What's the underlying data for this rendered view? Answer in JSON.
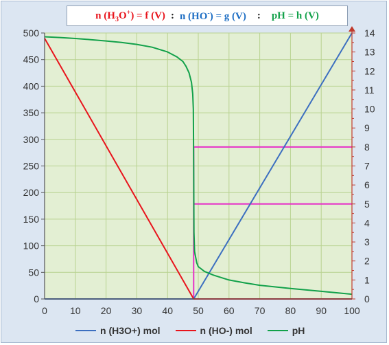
{
  "title": {
    "part1": "n (H",
    "part1_sub": "3",
    "part1_tail": "O",
    "part1_sup": "+",
    "part1_end": ") = f (V)",
    "sep1": ":",
    "part2": "n (HO",
    "part2_sup": "-",
    "part2_end": ") = g (V)",
    "sep2": ":",
    "part3": "pH = h (V)"
  },
  "colors": {
    "h3o": "#3c6fc0",
    "ho": "#e8141c",
    "ph": "#12a14a",
    "guide": "#e630c8",
    "plot_bg": "#e3efd3",
    "grid": "#b8d28f"
  },
  "chart_data": {
    "type": "line",
    "x": [
      0,
      10,
      20,
      30,
      40,
      48,
      49,
      50,
      60,
      70,
      80,
      90,
      100
    ],
    "xlim": [
      0,
      100
    ],
    "ylim_left": [
      0,
      500
    ],
    "ylim_right": [
      0,
      14
    ],
    "x_ticks": [
      "0",
      "10",
      "20",
      "30",
      "40",
      "50",
      "60",
      "70",
      "80",
      "90",
      "100"
    ],
    "y_left_ticks": [
      "0",
      "50",
      "100",
      "150",
      "200",
      "250",
      "300",
      "350",
      "400",
      "450",
      "500"
    ],
    "y_right_ticks": [
      "0",
      "1",
      "2",
      "3",
      "4",
      "5",
      "6",
      "7",
      "8",
      "9",
      "10",
      "11",
      "12",
      "13",
      "14"
    ],
    "grid": true,
    "legend_position": "bottom",
    "series": [
      {
        "name": "n (H3O+) mol",
        "axis": "left",
        "points": [
          [
            0,
            0
          ],
          [
            48.5,
            0
          ],
          [
            100,
            500
          ]
        ]
      },
      {
        "name": "n (HO-) mol",
        "axis": "left",
        "points": [
          [
            0,
            490
          ],
          [
            48.5,
            0
          ],
          [
            100,
            0
          ]
        ]
      },
      {
        "name": "pH",
        "axis": "right",
        "points": [
          [
            0,
            13.8
          ],
          [
            5,
            13.76
          ],
          [
            10,
            13.71
          ],
          [
            15,
            13.65
          ],
          [
            20,
            13.58
          ],
          [
            25,
            13.5
          ],
          [
            30,
            13.4
          ],
          [
            35,
            13.25
          ],
          [
            40,
            13.0
          ],
          [
            43,
            12.75
          ],
          [
            45,
            12.5
          ],
          [
            46,
            12.25
          ],
          [
            47,
            11.9
          ],
          [
            47.8,
            11.4
          ],
          [
            48.2,
            10.8
          ],
          [
            48.4,
            10.0
          ],
          [
            48.5,
            7.0
          ],
          [
            48.6,
            3.5
          ],
          [
            48.8,
            2.5
          ],
          [
            49.5,
            1.9
          ],
          [
            50,
            1.7
          ],
          [
            52,
            1.45
          ],
          [
            55,
            1.25
          ],
          [
            60,
            1.0
          ],
          [
            65,
            0.85
          ],
          [
            70,
            0.72
          ],
          [
            80,
            0.55
          ],
          [
            90,
            0.4
          ],
          [
            100,
            0.25
          ]
        ]
      }
    ],
    "guides": [
      {
        "x": 48.5,
        "from": 0,
        "to": 8,
        "axis": "right"
      },
      {
        "y": 8,
        "from": 48.5,
        "to": 100,
        "axis": "right"
      },
      {
        "y": 5,
        "from": 48.5,
        "to": 100,
        "axis": "right"
      }
    ]
  }
}
